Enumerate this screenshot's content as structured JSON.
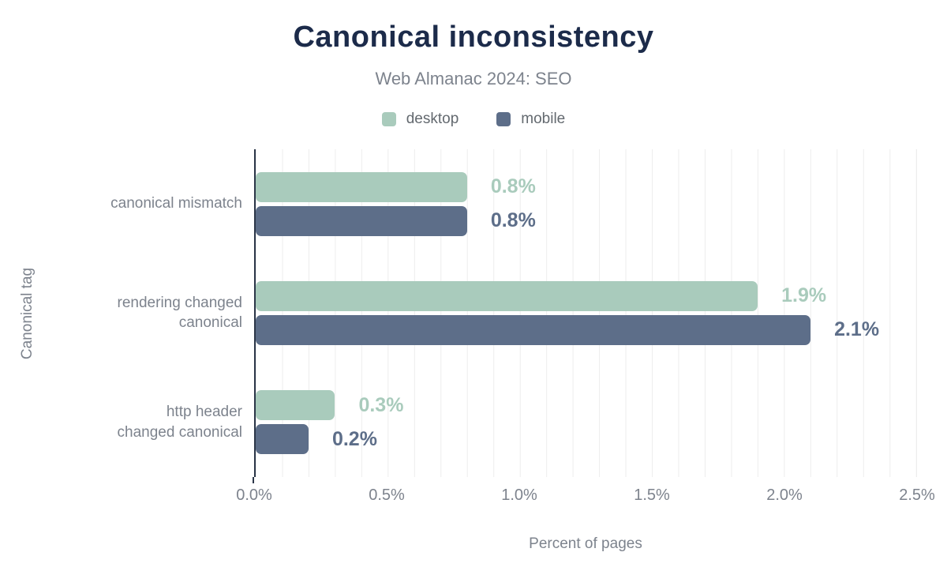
{
  "header": {
    "title": "Canonical inconsistency",
    "subtitle": "Web Almanac 2024: SEO"
  },
  "chart_data": {
    "type": "bar",
    "orientation": "horizontal",
    "title": "Canonical inconsistency",
    "subtitle": "Web Almanac 2024: SEO",
    "categories": [
      "canonical mismatch",
      "rendering changed canonical",
      "http header changed canonical"
    ],
    "category_labels": [
      "canonical mismatch",
      "rendering changed\ncanonical",
      "http header\nchanged canonical"
    ],
    "series": [
      {
        "name": "desktop",
        "color": "#a9cbbc",
        "values": [
          0.8,
          1.9,
          0.3
        ],
        "labels": [
          "0.8%",
          "1.9%",
          "0.3%"
        ]
      },
      {
        "name": "mobile",
        "color": "#5d6e89",
        "values": [
          0.8,
          2.1,
          0.2
        ],
        "labels": [
          "0.8%",
          "2.1%",
          "0.2%"
        ]
      }
    ],
    "xlabel": "Percent of pages",
    "ylabel": "Canonical tag",
    "xlim": [
      0,
      2.5
    ],
    "xticks": [
      "0.0%",
      "0.5%",
      "1.0%",
      "1.5%",
      "2.0%",
      "2.5%"
    ],
    "grid": {
      "minor_x_step": 0.1,
      "color": "#ededed"
    },
    "legend_position": "top",
    "value_labels": "outside-end, colored per series"
  },
  "colors": {
    "title": "#1c2b4a",
    "muted_text": "#7d838d",
    "legend_text": "#63696f",
    "axis_line": "#2b3648",
    "gridline": "#ededed",
    "background": "#ffffff"
  }
}
